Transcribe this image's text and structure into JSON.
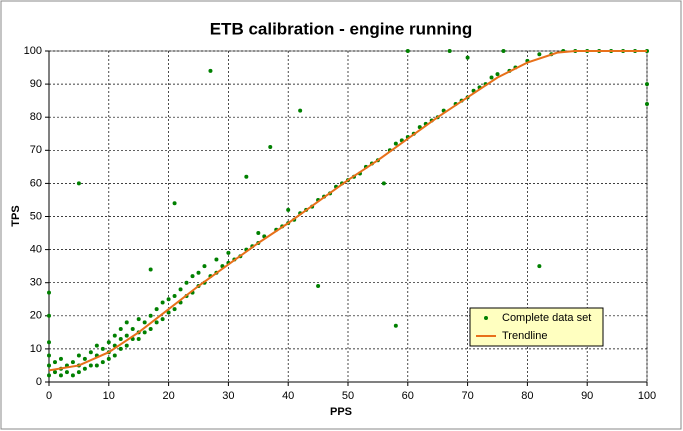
{
  "chart_data": {
    "type": "scatter",
    "title": "ETB calibration - engine running",
    "x_label": "PPS",
    "y_label": "TPS",
    "xlim": [
      0,
      100
    ],
    "ylim": [
      0,
      100
    ],
    "xticks": [
      0,
      10,
      20,
      30,
      40,
      50,
      60,
      70,
      80,
      90,
      100
    ],
    "yticks": [
      0,
      10,
      20,
      30,
      40,
      50,
      60,
      70,
      80,
      90,
      100
    ],
    "grid": true,
    "legend": "lower right",
    "series": [
      {
        "name": "Complete data set",
        "color": "#008000",
        "kind": "points",
        "x": [
          0,
          0,
          0,
          0,
          0,
          0,
          1,
          1,
          2,
          2,
          2,
          3,
          3,
          4,
          4,
          5,
          5,
          5,
          6,
          6,
          7,
          7,
          8,
          8,
          8,
          9,
          9,
          10,
          10,
          10,
          11,
          11,
          11,
          12,
          12,
          12,
          13,
          13,
          13,
          14,
          14,
          15,
          15,
          15,
          16,
          16,
          17,
          17,
          17,
          18,
          18,
          19,
          19,
          20,
          20,
          21,
          21,
          21,
          22,
          22,
          23,
          23,
          24,
          24,
          25,
          25,
          26,
          26,
          27,
          27,
          28,
          28,
          29,
          30,
          30,
          31,
          32,
          33,
          33,
          34,
          35,
          35,
          36,
          37,
          38,
          39,
          40,
          40,
          41,
          42,
          42,
          43,
          44,
          45,
          45,
          46,
          47,
          48,
          49,
          50,
          51,
          52,
          53,
          54,
          55,
          56,
          57,
          58,
          58,
          59,
          60,
          60,
          61,
          62,
          63,
          64,
          65,
          66,
          67,
          68,
          69,
          70,
          70,
          71,
          72,
          73,
          74,
          75,
          76,
          77,
          78,
          80,
          82,
          82,
          84,
          86,
          88,
          90,
          92,
          94,
          96,
          98,
          100,
          100,
          100,
          5
        ],
        "values": [
          2,
          5,
          8,
          12,
          20,
          27,
          3,
          6,
          2,
          4,
          7,
          3,
          5,
          2,
          6,
          3,
          5,
          8,
          4,
          7,
          5,
          9,
          5,
          8,
          11,
          6,
          10,
          7,
          9,
          12,
          8,
          11,
          14,
          10,
          13,
          16,
          11,
          14,
          18,
          13,
          16,
          13,
          15,
          19,
          15,
          18,
          16,
          20,
          34,
          18,
          22,
          19,
          24,
          21,
          25,
          22,
          26,
          54,
          24,
          28,
          26,
          30,
          27,
          32,
          29,
          33,
          30,
          35,
          32,
          94,
          33,
          37,
          35,
          36,
          39,
          37,
          38,
          40,
          62,
          41,
          42,
          45,
          44,
          71,
          46,
          47,
          48,
          52,
          49,
          51,
          82,
          52,
          53,
          29,
          55,
          56,
          57,
          59,
          60,
          61,
          62,
          63,
          65,
          66,
          67,
          60,
          70,
          17,
          72,
          73,
          74,
          100,
          75,
          77,
          78,
          79,
          80,
          82,
          100,
          84,
          85,
          86,
          98,
          88,
          89,
          90,
          92,
          93,
          100,
          94,
          95,
          97,
          35,
          99,
          99,
          100,
          100,
          100,
          100,
          100,
          100,
          100,
          100,
          90,
          84,
          60
        ]
      },
      {
        "name": "Trendline",
        "color": "#e8701a",
        "kind": "line",
        "x": [
          0,
          5,
          10,
          15,
          20,
          25,
          30,
          35,
          40,
          45,
          50,
          55,
          60,
          65,
          70,
          75,
          80,
          85,
          88,
          90,
          95,
          100
        ],
        "values": [
          3.5,
          5,
          9,
          15,
          22,
          29,
          35.5,
          42,
          48,
          54.5,
          61,
          67,
          73.5,
          80,
          86,
          92,
          96.5,
          99.5,
          100,
          100,
          100,
          100
        ]
      }
    ]
  }
}
